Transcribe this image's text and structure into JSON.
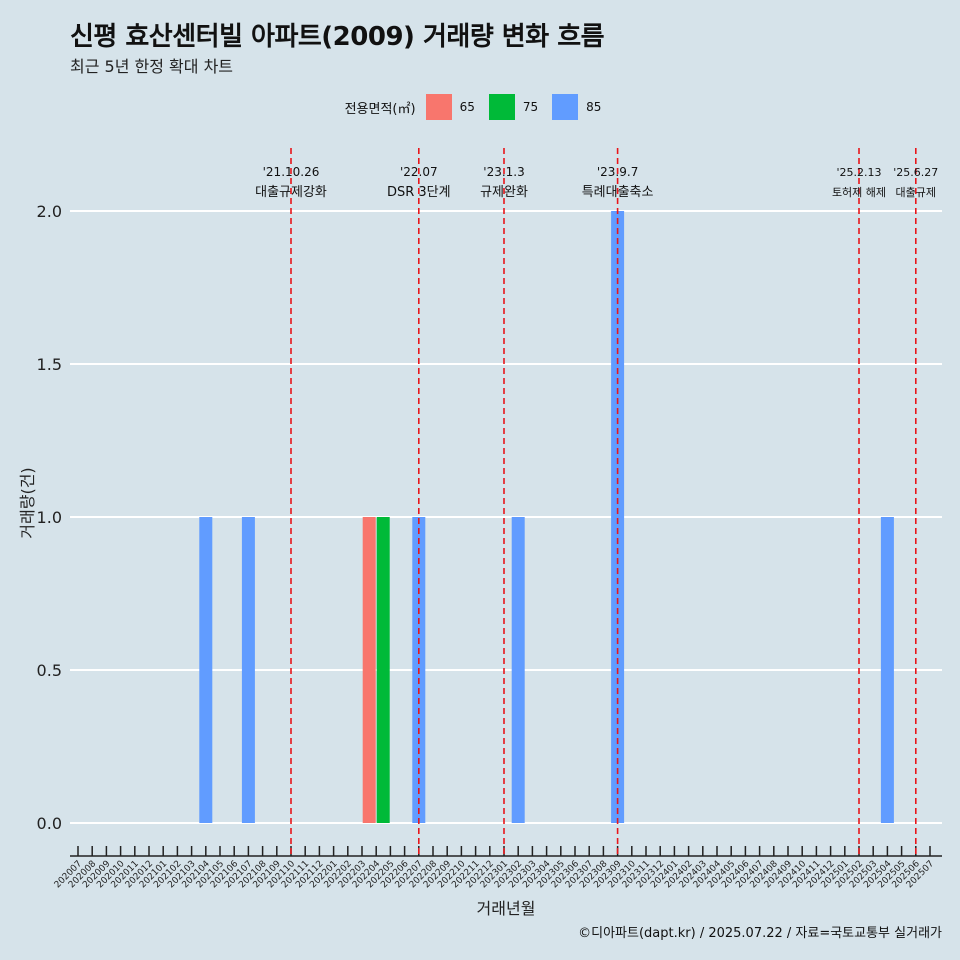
{
  "title": "신평 효산센터빌 아파트(2009) 거래량 변화 흐름",
  "subtitle": "최근 5년 한정 확대 차트",
  "caption": "©디아파트(dapt.kr) / 2025.07.22 / 자료=국토교통부 실거래가",
  "legend": {
    "title": "전용면적(㎡)",
    "items": [
      {
        "label": "65",
        "color": "#f8766d"
      },
      {
        "label": "75",
        "color": "#00ba38"
      },
      {
        "label": "85",
        "color": "#619cff"
      }
    ]
  },
  "chart_data": {
    "type": "bar",
    "xlabel": "거래년월",
    "ylabel": "거래량(건)",
    "ylim": [
      0,
      2
    ],
    "yticks": [
      "0.0",
      "0.5",
      "1.0",
      "1.5",
      "2.0"
    ],
    "categories": [
      "202007",
      "202008",
      "202009",
      "202010",
      "202011",
      "202012",
      "202101",
      "202102",
      "202103",
      "202104",
      "202105",
      "202106",
      "202107",
      "202108",
      "202109",
      "202110",
      "202111",
      "202112",
      "202201",
      "202202",
      "202203",
      "202204",
      "202205",
      "202206",
      "202207",
      "202208",
      "202209",
      "202210",
      "202211",
      "202212",
      "202301",
      "202302",
      "202303",
      "202304",
      "202305",
      "202306",
      "202307",
      "202308",
      "202309",
      "202310",
      "202311",
      "202312",
      "202401",
      "202402",
      "202403",
      "202404",
      "202405",
      "202406",
      "202407",
      "202408",
      "202409",
      "202410",
      "202411",
      "202412",
      "202501",
      "202502",
      "202503",
      "202504",
      "202505",
      "202506",
      "202507"
    ],
    "series": [
      {
        "name": "65",
        "color": "#f8766d",
        "points": [
          {
            "x": "202204",
            "y": 1
          }
        ]
      },
      {
        "name": "75",
        "color": "#00ba38",
        "points": [
          {
            "x": "202204",
            "y": 1
          }
        ]
      },
      {
        "name": "85",
        "color": "#619cff",
        "points": [
          {
            "x": "202104",
            "y": 1
          },
          {
            "x": "202107",
            "y": 1
          },
          {
            "x": "202207",
            "y": 1
          },
          {
            "x": "202302",
            "y": 1
          },
          {
            "x": "202309",
            "y": 2
          },
          {
            "x": "202504",
            "y": 1
          }
        ]
      }
    ],
    "annotations": [
      {
        "x": "202110",
        "date": "'21.10.26",
        "text": "대출규제강화"
      },
      {
        "x": "202207",
        "date": "'22.07",
        "text": "DSR 3단계"
      },
      {
        "x": "202301",
        "date": "'23.1.3",
        "text": "규제완화"
      },
      {
        "x": "202309",
        "date": "'23.9.7",
        "text": "특례대출축소"
      },
      {
        "x": "202502",
        "date": "'25.2.13",
        "text": "토허제 해제"
      },
      {
        "x": "202506",
        "date": "'25.6.27",
        "text": "대출규제"
      }
    ],
    "grid": true,
    "legend_position": "top"
  }
}
